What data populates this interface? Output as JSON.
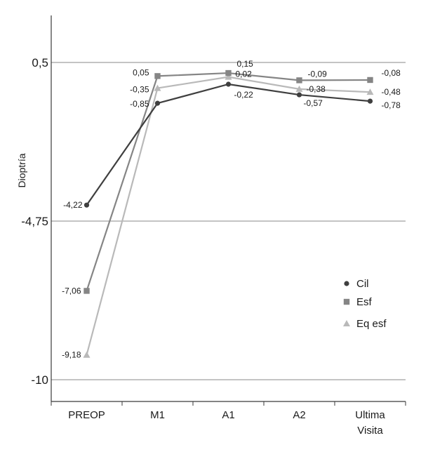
{
  "chart_data": {
    "type": "line",
    "title": "",
    "xlabel": "",
    "ylabel": "Dioptría",
    "categories": [
      "PREOP",
      "M1",
      "A1",
      "A2",
      "Ultima Visita"
    ],
    "yticks": [
      "0,5",
      "-4,75",
      "-10"
    ],
    "ytick_values": [
      0.5,
      -4.75,
      -10
    ],
    "ylim": [
      -10.7,
      2.1
    ],
    "grid": true,
    "legend_position": "right",
    "series": [
      {
        "name": "Cil",
        "marker": "circle",
        "color": "#3f3f3f",
        "values": [
          -4.22,
          -0.85,
          -0.22,
          -0.57,
          -0.78
        ],
        "labels": [
          "-4,22",
          "-0,85",
          "-0,22",
          "-0,57",
          "-0,78"
        ]
      },
      {
        "name": "Esf",
        "marker": "square",
        "color": "#858585",
        "values": [
          -7.06,
          0.05,
          0.15,
          -0.09,
          -0.08
        ],
        "labels": [
          "-7,06",
          "0,05",
          "0,15",
          "-0,09",
          "-0,08"
        ]
      },
      {
        "name": "Eq esf",
        "marker": "triangle",
        "color": "#b9b9b9",
        "values": [
          -9.18,
          -0.35,
          0.02,
          -0.38,
          -0.48
        ],
        "labels": [
          "-9,18",
          "-0,35",
          "0,02",
          "-0,38",
          "-0,48"
        ]
      }
    ]
  }
}
